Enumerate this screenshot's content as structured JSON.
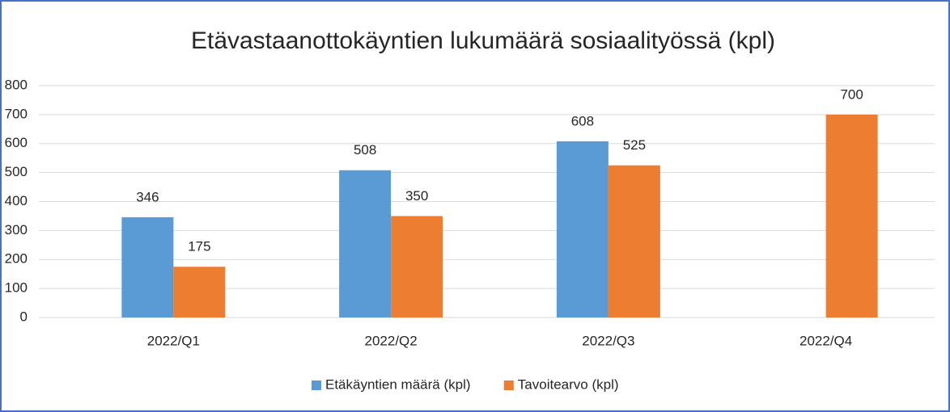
{
  "chart_data": {
    "type": "bar",
    "title": "Etävastaanottokäyntien lukumäärä sosiaalityössä (kpl)",
    "categories": [
      "2022/Q1",
      "2022/Q2",
      "2022/Q3",
      "2022/Q4"
    ],
    "series": [
      {
        "name": "Etäkäyntien määrä (kpl)",
        "color": "#5b9bd5",
        "values": [
          346,
          508,
          608,
          null
        ]
      },
      {
        "name": "Tavoitearvo (kpl)",
        "color": "#ed7d31",
        "values": [
          175,
          350,
          525,
          700
        ]
      }
    ],
    "ylim": [
      0,
      800
    ],
    "yticks": [
      0,
      100,
      200,
      300,
      400,
      500,
      600,
      700,
      800
    ],
    "grid": true,
    "legend": "bottom"
  }
}
